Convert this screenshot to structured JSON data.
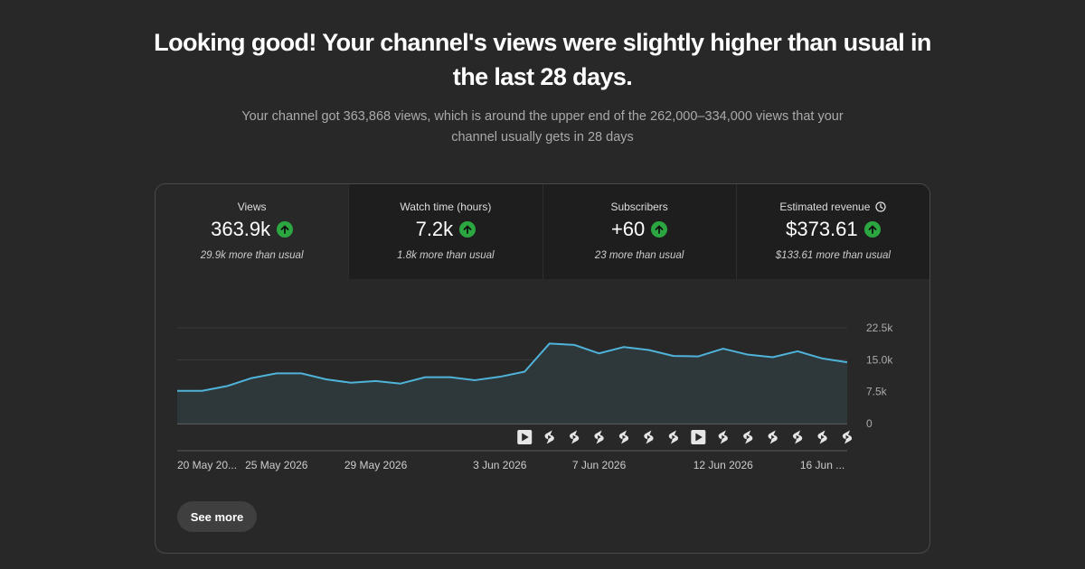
{
  "headline": "Looking good! Your channel's views were slightly higher than usual in the last 28 days.",
  "subline": "Your channel got 363,868 views, which is around the upper end of the 262,000–334,000 views that your channel usually gets in 28 days",
  "metrics": [
    {
      "label": "Views",
      "value": "363.9k",
      "note": "29.9k more than usual",
      "trend": "up"
    },
    {
      "label": "Watch time (hours)",
      "value": "7.2k",
      "note": "1.8k more than usual",
      "trend": "up"
    },
    {
      "label": "Subscribers",
      "value": "+60",
      "note": "23 more than usual",
      "trend": "up"
    },
    {
      "label": "Estimated revenue",
      "value": "$373.61",
      "note": "$133.61 more than usual",
      "trend": "up"
    }
  ],
  "see_more_label": "See more",
  "colors": {
    "line": "#4fb3d9",
    "fill": "#2f3a3d",
    "up": "#2ba640",
    "background": "#282828"
  },
  "chart_data": {
    "type": "area",
    "x": [
      1,
      2,
      3,
      4,
      5,
      6,
      7,
      8,
      9,
      10,
      11,
      12,
      13,
      14,
      15,
      16,
      17,
      18,
      19,
      20,
      21,
      22,
      23,
      24,
      25,
      26,
      27,
      28
    ],
    "values": [
      7700,
      7700,
      8800,
      10700,
      11800,
      11800,
      10400,
      9600,
      10000,
      9400,
      10900,
      10900,
      10200,
      11000,
      12200,
      18800,
      18500,
      16500,
      18000,
      17300,
      15900,
      15800,
      17600,
      16200,
      15600,
      17000,
      15300,
      14400
    ],
    "ylim": [
      0,
      22500
    ],
    "yticks": [
      "22.5k",
      "15.0k",
      "7.5k",
      "0"
    ],
    "ytick_values": [
      22500,
      15000,
      7500,
      0
    ],
    "xticks": [
      {
        "label": "20 May 20...",
        "day": 1
      },
      {
        "label": "25 May 2026",
        "day": 5
      },
      {
        "label": "29 May 2026",
        "day": 9
      },
      {
        "label": "3 Jun 2026",
        "day": 14
      },
      {
        "label": "7 Jun 2026",
        "day": 18
      },
      {
        "label": "12 Jun 2026",
        "day": 23
      },
      {
        "label": "16 Jun ...",
        "day": 27
      }
    ],
    "markers": [
      {
        "day": 15,
        "icon": "video-icon"
      },
      {
        "day": 16,
        "icon": "shorts-icon"
      },
      {
        "day": 17,
        "icon": "shorts-icon"
      },
      {
        "day": 18,
        "icon": "shorts-icon"
      },
      {
        "day": 19,
        "icon": "shorts-icon"
      },
      {
        "day": 20,
        "icon": "shorts-icon"
      },
      {
        "day": 21,
        "icon": "shorts-icon"
      },
      {
        "day": 22,
        "icon": "video-icon"
      },
      {
        "day": 23,
        "icon": "shorts-icon"
      },
      {
        "day": 24,
        "icon": "shorts-icon"
      },
      {
        "day": 25,
        "icon": "shorts-icon"
      },
      {
        "day": 26,
        "icon": "shorts-icon"
      },
      {
        "day": 27,
        "icon": "shorts-icon"
      },
      {
        "day": 28,
        "icon": "shorts-icon"
      }
    ]
  }
}
